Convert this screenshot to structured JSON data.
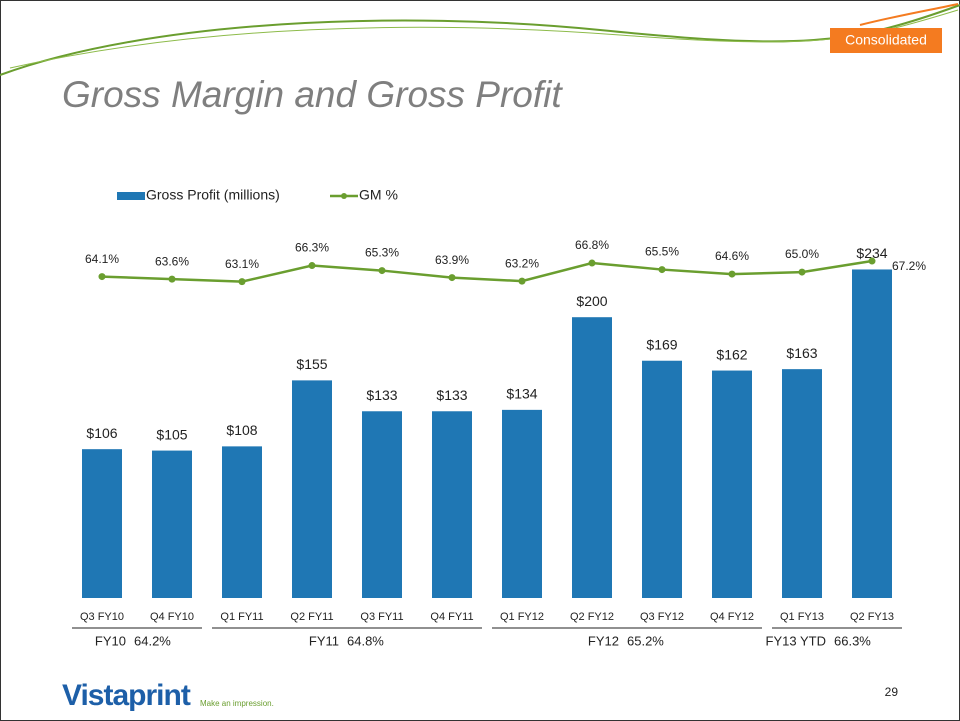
{
  "slide": {
    "badge": "Consolidated",
    "page_number": "29",
    "logo": "Vistaprint",
    "tagline": "Make an impression."
  },
  "chart_data": {
    "type": "bar",
    "title": "Gross Margin and Gross Profit",
    "categories": [
      "Q3 FY10",
      "Q4 FY10",
      "Q1 FY11",
      "Q2 FY11",
      "Q3 FY11",
      "Q4 FY11",
      "Q1 FY12",
      "Q2 FY12",
      "Q3 FY12",
      "Q4 FY12",
      "Q1 FY13",
      "Q2 FY13"
    ],
    "series": [
      {
        "name": "Gross Profit (millions)",
        "type": "bar",
        "color": "#1f77b4",
        "values": [
          106,
          105,
          108,
          155,
          133,
          133,
          134,
          200,
          169,
          162,
          163,
          234
        ],
        "value_labels": [
          "$106",
          "$105",
          "$108",
          "$155",
          "$133",
          "$133",
          "$134",
          "$200",
          "$169",
          "$162",
          "$163",
          "$234"
        ]
      },
      {
        "name": "GM %",
        "type": "line",
        "axis": "y2",
        "color": "#6a9e2f",
        "values": [
          64.1,
          63.6,
          63.1,
          66.3,
          65.3,
          63.9,
          63.2,
          66.8,
          65.5,
          64.6,
          65.0,
          67.2
        ],
        "value_labels": [
          "64.1%",
          "63.6%",
          "63.1%",
          "66.3%",
          "65.3%",
          "63.9%",
          "63.2%",
          "66.8%",
          "65.5%",
          "64.6%",
          "65.0%",
          "67.2%"
        ]
      }
    ],
    "ylim": [
      0,
      250
    ],
    "y2lim": [
      0,
      70
    ],
    "groups": [
      {
        "name": "FY10",
        "value": 64.2,
        "label": "64.2%"
      },
      {
        "name": "FY11",
        "value": 64.8,
        "label": "64.8%"
      },
      {
        "name": "FY12",
        "value": 65.2,
        "label": "65.2%"
      },
      {
        "name": "FY13 YTD",
        "value": 66.3,
        "label": "66.3%"
      }
    ]
  }
}
